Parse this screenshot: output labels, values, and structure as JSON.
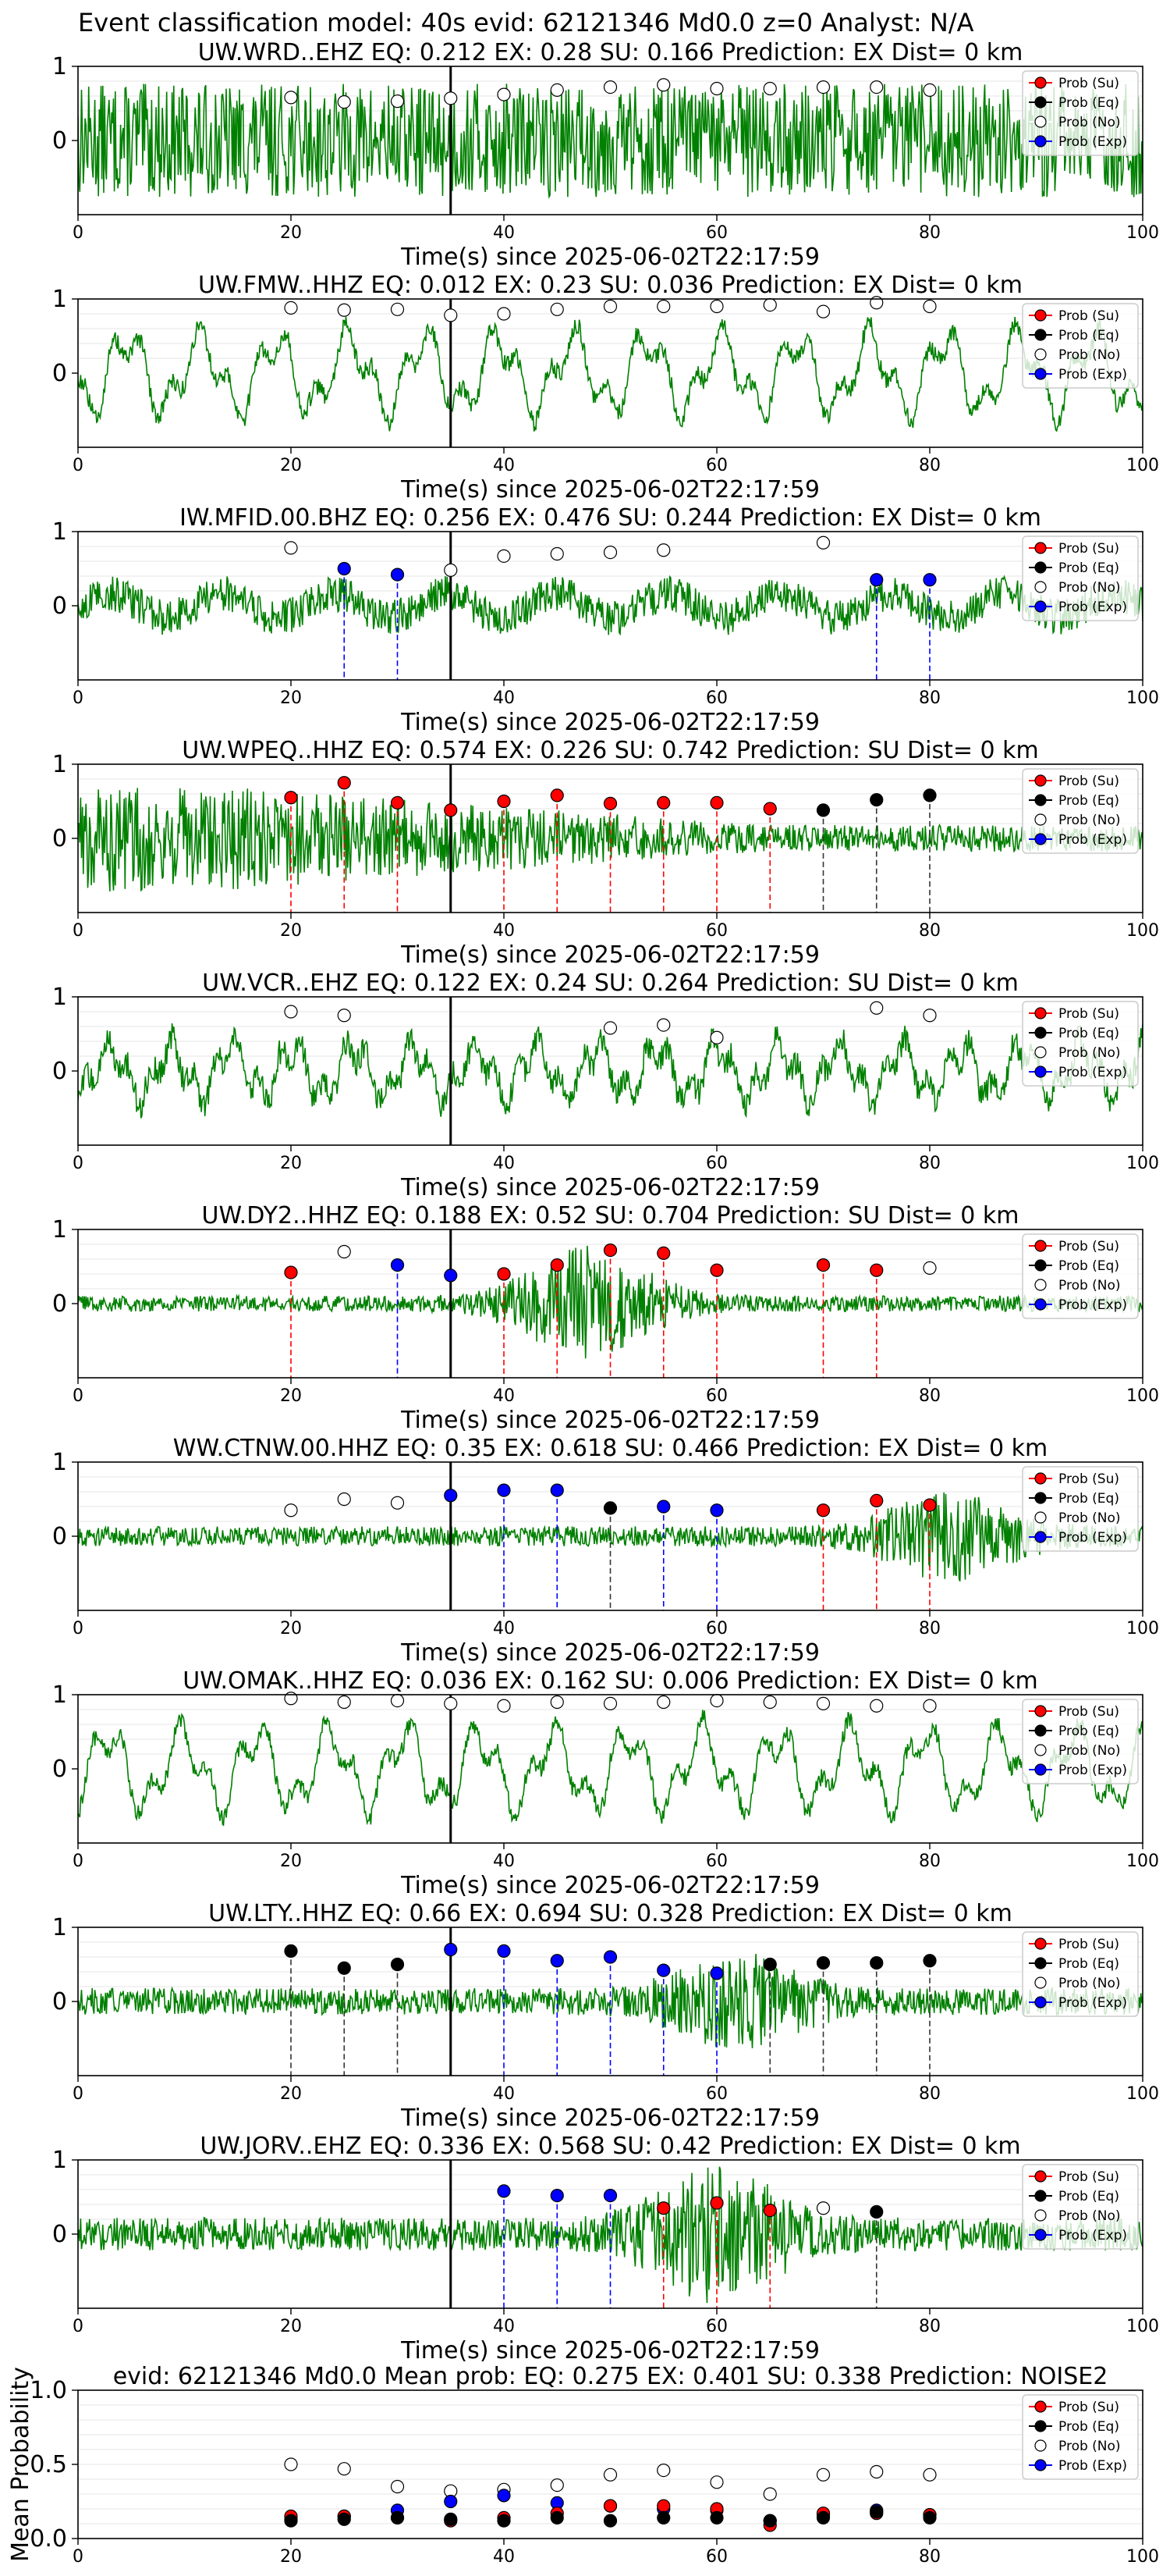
{
  "suptitle": "Event classification model: 40s evid: 62121346 Md0.0 z=0 Analyst: N/A",
  "xlabel": "Time(s) since 2025-06-02T22:17:59",
  "legend": [
    "Prob (Su)",
    "Prob (Eq)",
    "Prob (No)",
    "Prob (Exp)"
  ],
  "colors": {
    "su": "#ff0000",
    "eq": "#000000",
    "no": "#ffffff",
    "exp": "#0000ff",
    "trace": "#008000",
    "event_line": "#000000"
  },
  "chart_data": [
    {
      "type": "line",
      "station": "UW.WRD..EHZ",
      "title": "UW.WRD..EHZ   EQ: 0.212  EX: 0.28  SU: 0.166   Prediction: EX    Dist= 0 km",
      "xlim": [
        0,
        100
      ],
      "ylim": [
        -1,
        1
      ],
      "xticks": [
        0,
        20,
        40,
        60,
        80,
        100
      ],
      "yticks": [
        0,
        1
      ],
      "event_time": 35,
      "trace": {
        "amplitude": 0.85,
        "style": "noisy"
      },
      "points": [
        {
          "t": 20,
          "p": 0.58,
          "c": "no"
        },
        {
          "t": 25,
          "p": 0.52,
          "c": "no"
        },
        {
          "t": 30,
          "p": 0.53,
          "c": "no"
        },
        {
          "t": 35,
          "p": 0.57,
          "c": "no"
        },
        {
          "t": 40,
          "p": 0.62,
          "c": "no"
        },
        {
          "t": 45,
          "p": 0.68,
          "c": "no"
        },
        {
          "t": 50,
          "p": 0.72,
          "c": "no"
        },
        {
          "t": 55,
          "p": 0.75,
          "c": "no"
        },
        {
          "t": 60,
          "p": 0.7,
          "c": "no"
        },
        {
          "t": 65,
          "p": 0.7,
          "c": "no"
        },
        {
          "t": 70,
          "p": 0.72,
          "c": "no"
        },
        {
          "t": 75,
          "p": 0.72,
          "c": "no"
        },
        {
          "t": 80,
          "p": 0.68,
          "c": "no"
        }
      ]
    },
    {
      "type": "line",
      "station": "UW.FMW..HHZ",
      "title": "UW.FMW..HHZ   EQ: 0.012  EX: 0.23  SU: 0.036   Prediction: EX    Dist= 0 km",
      "xlim": [
        0,
        100
      ],
      "ylim": [
        -1,
        1
      ],
      "xticks": [
        0,
        20,
        40,
        60,
        80,
        100
      ],
      "yticks": [
        0,
        1
      ],
      "event_time": 35,
      "trace": {
        "amplitude": 0.8,
        "style": "smooth"
      },
      "points": [
        {
          "t": 20,
          "p": 0.88,
          "c": "no"
        },
        {
          "t": 25,
          "p": 0.85,
          "c": "no"
        },
        {
          "t": 30,
          "p": 0.86,
          "c": "no"
        },
        {
          "t": 35,
          "p": 0.78,
          "c": "no"
        },
        {
          "t": 40,
          "p": 0.8,
          "c": "no"
        },
        {
          "t": 45,
          "p": 0.86,
          "c": "no"
        },
        {
          "t": 50,
          "p": 0.9,
          "c": "no"
        },
        {
          "t": 55,
          "p": 0.9,
          "c": "no"
        },
        {
          "t": 60,
          "p": 0.9,
          "c": "no"
        },
        {
          "t": 65,
          "p": 0.92,
          "c": "no"
        },
        {
          "t": 70,
          "p": 0.83,
          "c": "no"
        },
        {
          "t": 75,
          "p": 0.95,
          "c": "no"
        },
        {
          "t": 80,
          "p": 0.9,
          "c": "no"
        }
      ]
    },
    {
      "type": "line",
      "station": "IW.MFID.00.BHZ",
      "title": "IW.MFID.00.BHZ   EQ: 0.256  EX: 0.476  SU: 0.244   Prediction: EX    Dist= 0 km",
      "xlim": [
        0,
        100
      ],
      "ylim": [
        -1,
        1
      ],
      "xticks": [
        0,
        20,
        40,
        60,
        80,
        100
      ],
      "yticks": [
        0,
        1
      ],
      "event_time": 35,
      "trace": {
        "amplitude": 0.4,
        "style": "mixed"
      },
      "points": [
        {
          "t": 20,
          "p": 0.78,
          "c": "no"
        },
        {
          "t": 25,
          "p": 0.5,
          "c": "exp"
        },
        {
          "t": 30,
          "p": 0.42,
          "c": "exp"
        },
        {
          "t": 35,
          "p": 0.48,
          "c": "no"
        },
        {
          "t": 40,
          "p": 0.67,
          "c": "no"
        },
        {
          "t": 45,
          "p": 0.7,
          "c": "no"
        },
        {
          "t": 50,
          "p": 0.72,
          "c": "no"
        },
        {
          "t": 55,
          "p": 0.75,
          "c": "no"
        },
        {
          "t": 70,
          "p": 0.85,
          "c": "no"
        },
        {
          "t": 75,
          "p": 0.35,
          "c": "exp"
        },
        {
          "t": 80,
          "p": 0.35,
          "c": "exp"
        }
      ]
    },
    {
      "type": "line",
      "station": "UW.WPEQ..HHZ",
      "title": "UW.WPEQ..HHZ   EQ: 0.574  EX: 0.226  SU: 0.742   Prediction: SU    Dist= 0 km",
      "xlim": [
        0,
        100
      ],
      "ylim": [
        -1,
        1
      ],
      "xticks": [
        0,
        20,
        40,
        60,
        80,
        100
      ],
      "yticks": [
        0,
        1
      ],
      "event_time": 35,
      "trace": {
        "amplitude": 0.8,
        "style": "decay"
      },
      "points": [
        {
          "t": 20,
          "p": 0.55,
          "c": "su"
        },
        {
          "t": 25,
          "p": 0.75,
          "c": "su"
        },
        {
          "t": 30,
          "p": 0.48,
          "c": "su"
        },
        {
          "t": 35,
          "p": 0.38,
          "c": "su"
        },
        {
          "t": 40,
          "p": 0.5,
          "c": "su"
        },
        {
          "t": 45,
          "p": 0.58,
          "c": "su"
        },
        {
          "t": 50,
          "p": 0.47,
          "c": "su"
        },
        {
          "t": 55,
          "p": 0.48,
          "c": "su"
        },
        {
          "t": 60,
          "p": 0.48,
          "c": "su"
        },
        {
          "t": 65,
          "p": 0.4,
          "c": "su"
        },
        {
          "t": 70,
          "p": 0.38,
          "c": "eq"
        },
        {
          "t": 75,
          "p": 0.52,
          "c": "eq"
        },
        {
          "t": 80,
          "p": 0.58,
          "c": "eq"
        }
      ]
    },
    {
      "type": "line",
      "station": "UW.VCR..EHZ",
      "title": "UW.VCR..EHZ   EQ: 0.122  EX: 0.24  SU: 0.264   Prediction: SU    Dist= 0 km",
      "xlim": [
        0,
        100
      ],
      "ylim": [
        -1,
        1
      ],
      "xticks": [
        0,
        20,
        40,
        60,
        80,
        100
      ],
      "yticks": [
        0,
        1
      ],
      "event_time": 35,
      "trace": {
        "amplitude": 0.6,
        "style": "smooth-noisy"
      },
      "points": [
        {
          "t": 20,
          "p": 0.8,
          "c": "no"
        },
        {
          "t": 25,
          "p": 0.75,
          "c": "no"
        },
        {
          "t": 50,
          "p": 0.58,
          "c": "no"
        },
        {
          "t": 55,
          "p": 0.62,
          "c": "no"
        },
        {
          "t": 60,
          "p": 0.45,
          "c": "no"
        },
        {
          "t": 75,
          "p": 0.85,
          "c": "no"
        },
        {
          "t": 80,
          "p": 0.75,
          "c": "no"
        }
      ]
    },
    {
      "type": "line",
      "station": "UW.DY2..HHZ",
      "title": "UW.DY2..HHZ   EQ: 0.188  EX: 0.52  SU: 0.704   Prediction: SU    Dist= 0 km",
      "xlim": [
        0,
        100
      ],
      "ylim": [
        -1,
        1
      ],
      "xticks": [
        0,
        20,
        40,
        60,
        80,
        100
      ],
      "yticks": [
        0,
        1
      ],
      "event_time": 35,
      "trace": {
        "amplitude": 0.12,
        "style": "burst",
        "burst_center": 48,
        "burst_amp": 0.75
      },
      "points": [
        {
          "t": 20,
          "p": 0.42,
          "c": "su"
        },
        {
          "t": 25,
          "p": 0.7,
          "c": "no"
        },
        {
          "t": 30,
          "p": 0.52,
          "c": "exp"
        },
        {
          "t": 35,
          "p": 0.38,
          "c": "exp"
        },
        {
          "t": 40,
          "p": 0.4,
          "c": "su"
        },
        {
          "t": 45,
          "p": 0.52,
          "c": "su"
        },
        {
          "t": 50,
          "p": 0.72,
          "c": "su"
        },
        {
          "t": 55,
          "p": 0.68,
          "c": "su"
        },
        {
          "t": 60,
          "p": 0.45,
          "c": "su"
        },
        {
          "t": 70,
          "p": 0.52,
          "c": "su"
        },
        {
          "t": 75,
          "p": 0.45,
          "c": "su"
        },
        {
          "t": 80,
          "p": 0.48,
          "c": "no"
        }
      ]
    },
    {
      "type": "line",
      "station": "WW.CTNW.00.HHZ",
      "title": "WW.CTNW.00.HHZ   EQ: 0.35  EX: 0.618  SU: 0.466   Prediction: EX    Dist= 0 km",
      "xlim": [
        0,
        100
      ],
      "ylim": [
        -1,
        1
      ],
      "xticks": [
        0,
        20,
        40,
        60,
        80,
        100
      ],
      "yticks": [
        0,
        1
      ],
      "event_time": 35,
      "trace": {
        "amplitude": 0.15,
        "style": "burst",
        "burst_center": 82,
        "burst_amp": 0.55
      },
      "points": [
        {
          "t": 20,
          "p": 0.35,
          "c": "no"
        },
        {
          "t": 25,
          "p": 0.5,
          "c": "no"
        },
        {
          "t": 30,
          "p": 0.45,
          "c": "no"
        },
        {
          "t": 35,
          "p": 0.55,
          "c": "exp"
        },
        {
          "t": 40,
          "p": 0.62,
          "c": "exp"
        },
        {
          "t": 45,
          "p": 0.62,
          "c": "exp"
        },
        {
          "t": 50,
          "p": 0.38,
          "c": "eq"
        },
        {
          "t": 55,
          "p": 0.4,
          "c": "exp"
        },
        {
          "t": 60,
          "p": 0.35,
          "c": "exp"
        },
        {
          "t": 70,
          "p": 0.35,
          "c": "su"
        },
        {
          "t": 75,
          "p": 0.48,
          "c": "su"
        },
        {
          "t": 80,
          "p": 0.42,
          "c": "su"
        }
      ]
    },
    {
      "type": "line",
      "station": "UW.OMAK..HHZ",
      "title": "UW.OMAK..HHZ   EQ: 0.036  EX: 0.162  SU: 0.006   Prediction: EX    Dist= 0 km",
      "xlim": [
        0,
        100
      ],
      "ylim": [
        -1,
        1
      ],
      "xticks": [
        0,
        20,
        40,
        60,
        80,
        100
      ],
      "yticks": [
        0,
        1
      ],
      "event_time": 35,
      "trace": {
        "amplitude": 0.8,
        "style": "smooth"
      },
      "points": [
        {
          "t": 20,
          "p": 0.95,
          "c": "no"
        },
        {
          "t": 25,
          "p": 0.9,
          "c": "no"
        },
        {
          "t": 30,
          "p": 0.92,
          "c": "no"
        },
        {
          "t": 35,
          "p": 0.88,
          "c": "no"
        },
        {
          "t": 40,
          "p": 0.85,
          "c": "no"
        },
        {
          "t": 45,
          "p": 0.9,
          "c": "no"
        },
        {
          "t": 50,
          "p": 0.88,
          "c": "no"
        },
        {
          "t": 55,
          "p": 0.9,
          "c": "no"
        },
        {
          "t": 60,
          "p": 0.92,
          "c": "no"
        },
        {
          "t": 65,
          "p": 0.9,
          "c": "no"
        },
        {
          "t": 70,
          "p": 0.88,
          "c": "no"
        },
        {
          "t": 75,
          "p": 0.85,
          "c": "no"
        },
        {
          "t": 80,
          "p": 0.85,
          "c": "no"
        }
      ]
    },
    {
      "type": "line",
      "station": "UW.LTY..HHZ",
      "title": "UW.LTY..HHZ   EQ: 0.66  EX: 0.694  SU: 0.328   Prediction: EX    Dist= 0 km",
      "xlim": [
        0,
        100
      ],
      "ylim": [
        -1,
        1
      ],
      "xticks": [
        0,
        20,
        40,
        60,
        80,
        100
      ],
      "yticks": [
        0,
        1
      ],
      "event_time": 35,
      "trace": {
        "amplitude": 0.2,
        "style": "burst",
        "burst_center": 62,
        "burst_amp": 0.55
      },
      "points": [
        {
          "t": 20,
          "p": 0.68,
          "c": "eq"
        },
        {
          "t": 25,
          "p": 0.45,
          "c": "eq"
        },
        {
          "t": 30,
          "p": 0.5,
          "c": "eq"
        },
        {
          "t": 35,
          "p": 0.7,
          "c": "exp"
        },
        {
          "t": 40,
          "p": 0.68,
          "c": "exp"
        },
        {
          "t": 45,
          "p": 0.55,
          "c": "exp"
        },
        {
          "t": 50,
          "p": 0.6,
          "c": "exp"
        },
        {
          "t": 55,
          "p": 0.42,
          "c": "exp"
        },
        {
          "t": 60,
          "p": 0.38,
          "c": "exp"
        },
        {
          "t": 65,
          "p": 0.5,
          "c": "eq"
        },
        {
          "t": 70,
          "p": 0.52,
          "c": "eq"
        },
        {
          "t": 75,
          "p": 0.52,
          "c": "eq"
        },
        {
          "t": 80,
          "p": 0.55,
          "c": "eq"
        }
      ]
    },
    {
      "type": "line",
      "station": "UW.JORV..EHZ",
      "title": "UW.JORV..EHZ   EQ: 0.336  EX: 0.568  SU: 0.42   Prediction: EX    Dist= 0 km",
      "xlim": [
        0,
        100
      ],
      "ylim": [
        -1,
        1
      ],
      "xticks": [
        0,
        20,
        40,
        60,
        80,
        100
      ],
      "yticks": [
        0,
        1
      ],
      "event_time": 35,
      "trace": {
        "amplitude": 0.25,
        "style": "burst",
        "burst_center": 60,
        "burst_amp": 0.8
      },
      "points": [
        {
          "t": 40,
          "p": 0.58,
          "c": "exp"
        },
        {
          "t": 45,
          "p": 0.52,
          "c": "exp"
        },
        {
          "t": 50,
          "p": 0.52,
          "c": "exp"
        },
        {
          "t": 55,
          "p": 0.35,
          "c": "su"
        },
        {
          "t": 60,
          "p": 0.42,
          "c": "su"
        },
        {
          "t": 65,
          "p": 0.32,
          "c": "su"
        },
        {
          "t": 70,
          "p": 0.35,
          "c": "no"
        },
        {
          "t": 75,
          "p": 0.3,
          "c": "eq"
        }
      ]
    },
    {
      "type": "scatter",
      "station": "mean",
      "title": "evid: 62121346  Md0.0   Mean prob:   EQ: 0.275  EX: 0.401  SU: 0.338   Prediction: NOISE2",
      "ylabel": "Mean Probability",
      "xlim": [
        0,
        100
      ],
      "ylim": [
        0,
        1
      ],
      "xticks": [
        0,
        20,
        40,
        60,
        80,
        100
      ],
      "yticks": [
        0.0,
        0.5,
        1.0
      ],
      "ytick_labels": [
        "0.0",
        "0.5",
        "1.0"
      ],
      "x": [
        20,
        25,
        30,
        35,
        40,
        45,
        50,
        55,
        60,
        65,
        70,
        75,
        80
      ],
      "series": [
        {
          "name": "Prob (No)",
          "key": "no",
          "values": [
            0.5,
            0.47,
            0.35,
            0.32,
            0.33,
            0.36,
            0.43,
            0.46,
            0.38,
            0.3,
            0.43,
            0.45,
            0.43
          ]
        },
        {
          "name": "Prob (Exp)",
          "key": "exp",
          "values": [
            0.13,
            0.15,
            0.19,
            0.25,
            0.29,
            0.24,
            0.22,
            0.2,
            0.19,
            0.12,
            0.16,
            0.19,
            0.16
          ]
        },
        {
          "name": "Prob (Su)",
          "key": "su",
          "values": [
            0.15,
            0.15,
            0.14,
            0.12,
            0.14,
            0.17,
            0.22,
            0.22,
            0.2,
            0.09,
            0.17,
            0.17,
            0.16
          ]
        },
        {
          "name": "Prob (Eq)",
          "key": "eq",
          "values": [
            0.12,
            0.13,
            0.14,
            0.13,
            0.12,
            0.14,
            0.12,
            0.14,
            0.14,
            0.12,
            0.14,
            0.18,
            0.14
          ]
        }
      ]
    }
  ]
}
